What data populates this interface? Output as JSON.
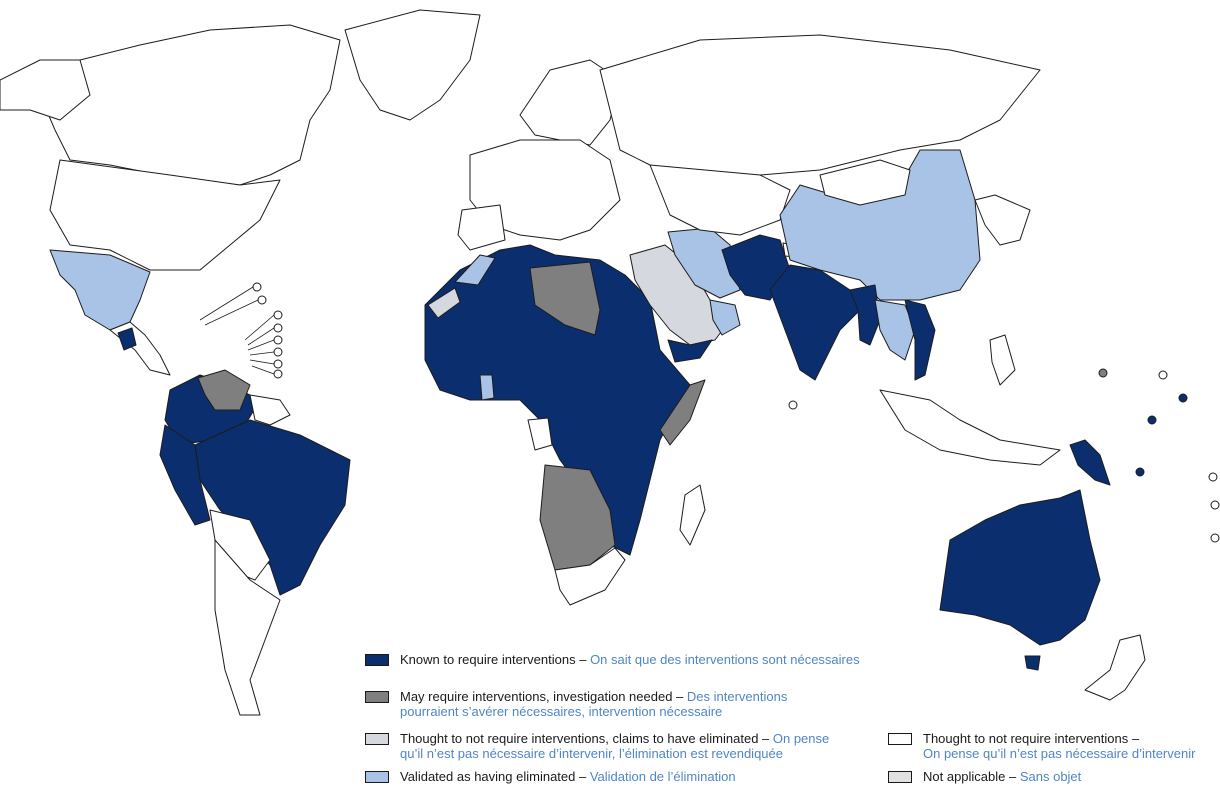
{
  "colors": {
    "known": "#0b2f6e",
    "may": "#7f7f7f",
    "claims": "#d6d8df",
    "validated": "#a8c3e5",
    "not_required": "#ffffff",
    "not_applicable": "#e1e1e1",
    "outline": "#1c1c1c",
    "french_text": "#4f86c6"
  },
  "legend": {
    "known": {
      "en": "Known to require interventions – ",
      "fr": "On sait que des interventions sont nécessaires"
    },
    "may": {
      "en": "May require interventions, investigation needed – ",
      "fr1": "Des interventions",
      "fr2": "pourraient s’avérer nécessaires, intervention nécessaire"
    },
    "claims": {
      "en": "Thought to not require interventions, claims to have eliminated – ",
      "fr1": "On pense",
      "fr2": "qu’il n’est pas nécessaire d’intervenir, l’élimination est revendiquée"
    },
    "validated": {
      "en": "Validated as having eliminated – ",
      "fr": "Validation de l’élimination"
    },
    "not_required": {
      "en": "Thought to not require interventions –",
      "fr": "On pense qu’il n’est pas nécessaire d’intervenir"
    },
    "not_applicable": {
      "en": "Not applicable – ",
      "fr": "Sans objet"
    }
  },
  "map_icons": {
    "island_marker": "circle-marker-icon",
    "callout_line": "leader-line-icon"
  }
}
